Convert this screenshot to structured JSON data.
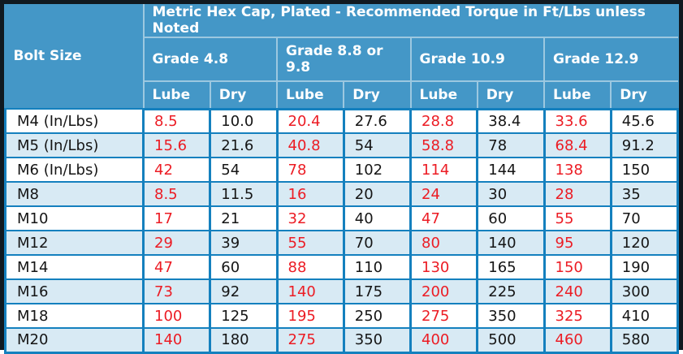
{
  "chart_data": {
    "type": "table",
    "title": "Metric Hex Cap, Plated - Recommended Torque in Ft/Lbs unless Noted",
    "bolt_size_header": "Bolt Size",
    "grade_groups": [
      "Grade 4.8",
      "Grade 8.8 or 9.8",
      "Grade 10.9",
      "Grade 12.9"
    ],
    "sub_columns": [
      "Lube",
      "Dry"
    ],
    "rows": [
      {
        "bolt_size": "M4 (In/Lbs)",
        "values": [
          "8.5",
          "10.0",
          "20.4",
          "27.6",
          "28.8",
          "38.4",
          "33.6",
          "45.6"
        ]
      },
      {
        "bolt_size": "M5 (In/Lbs)",
        "values": [
          "15.6",
          "21.6",
          "40.8",
          "54",
          "58.8",
          "78",
          "68.4",
          "91.2"
        ]
      },
      {
        "bolt_size": "M6 (In/Lbs)",
        "values": [
          "42",
          "54",
          "78",
          "102",
          "114",
          "144",
          "138",
          "150"
        ]
      },
      {
        "bolt_size": "M8",
        "values": [
          "8.5",
          "11.5",
          "16",
          "20",
          "24",
          "30",
          "28",
          "35"
        ]
      },
      {
        "bolt_size": "M10",
        "values": [
          "17",
          "21",
          "32",
          "40",
          "47",
          "60",
          "55",
          "70"
        ]
      },
      {
        "bolt_size": "M12",
        "values": [
          "29",
          "39",
          "55",
          "70",
          "80",
          "140",
          "95",
          "120"
        ]
      },
      {
        "bolt_size": "M14",
        "values": [
          "47",
          "60",
          "88",
          "110",
          "130",
          "165",
          "150",
          "190"
        ]
      },
      {
        "bolt_size": "M16",
        "values": [
          "73",
          "92",
          "140",
          "175",
          "200",
          "225",
          "240",
          "300"
        ]
      },
      {
        "bolt_size": "M18",
        "values": [
          "100",
          "125",
          "195",
          "250",
          "275",
          "350",
          "325",
          "410"
        ]
      },
      {
        "bolt_size": "M20",
        "values": [
          "140",
          "180",
          "275",
          "350",
          "400",
          "500",
          "460",
          "580"
        ]
      }
    ]
  },
  "colors": {
    "header_bg": "#4497C7",
    "header_text": "#FFFFFF",
    "header_divider": "#9CC8E0",
    "body_border": "#1480BE",
    "row_bg": "#FFFFFF",
    "row_alt_bg": "#D8EAF4",
    "lube_value_text": "#EC1C24",
    "dry_value_text": "#151515",
    "outer_frame": "#101920"
  }
}
